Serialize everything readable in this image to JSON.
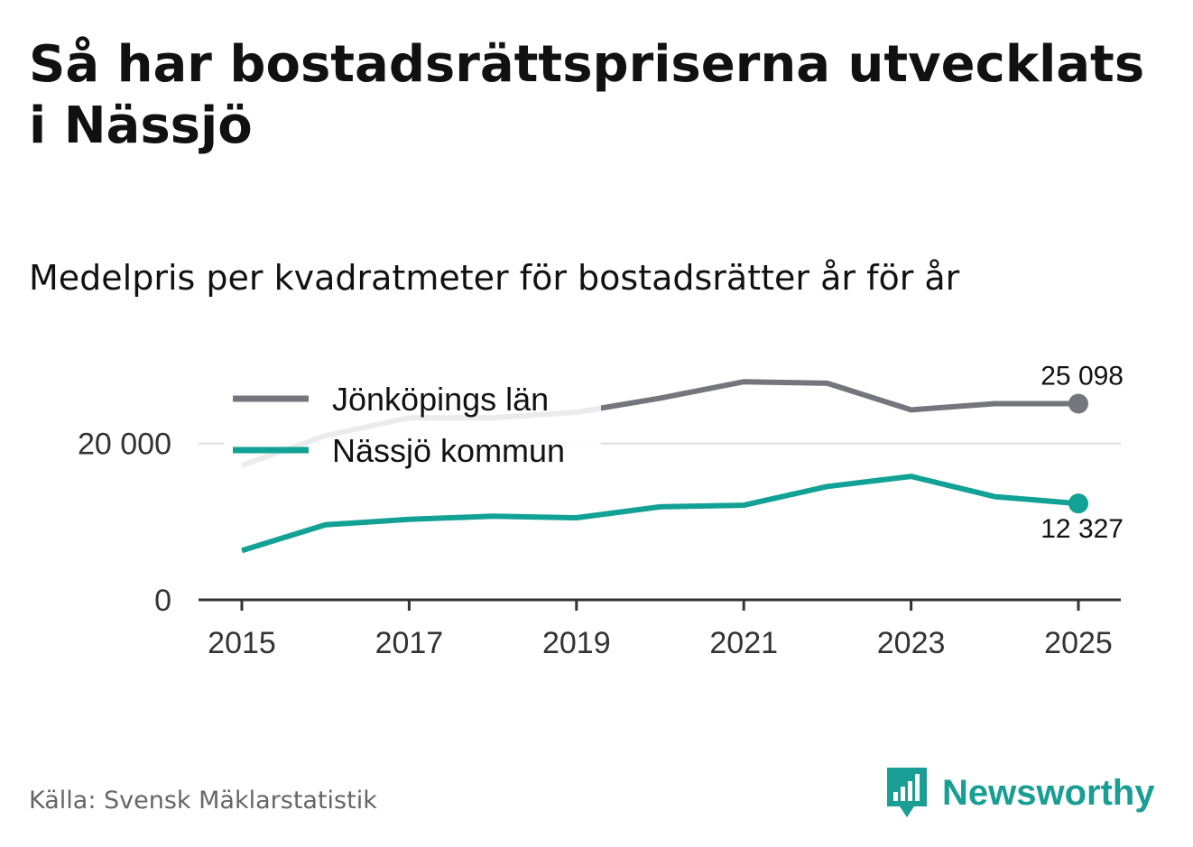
{
  "title": "Så har bostadsrättspriserna utvecklats i Nässjö",
  "subtitle": "Medelpris per kvadratmeter för bostadsrätter år för år",
  "source": "Källa: Svensk Mäklarstatistik",
  "brand": "Newsworthy",
  "colors": {
    "county": "#75757d",
    "municipality": "#12a195",
    "grid": "#dddddd",
    "axis": "#333333",
    "brand": "#199e93"
  },
  "chart_data": {
    "type": "line",
    "title": "Så har bostadsrättspriserna utvecklats i Nässjö",
    "subtitle": "Medelpris per kvadratmeter för bostadsrätter år för år",
    "xlabel": "",
    "ylabel": "",
    "xlim": [
      2015,
      2025
    ],
    "ylim": [
      0,
      30000
    ],
    "yticks": [
      {
        "value": 0,
        "label": "0"
      },
      {
        "value": 20000,
        "label": "20 000"
      }
    ],
    "xticks": [
      2015,
      2017,
      2019,
      2021,
      2023,
      2025
    ],
    "xtick_labels": [
      "2015",
      "2017",
      "2019",
      "2021",
      "2023",
      "2025"
    ],
    "x": [
      2015,
      2016,
      2017,
      2018,
      2019,
      2020,
      2021,
      2022,
      2023,
      2024,
      2025
    ],
    "legend_position": "top-left",
    "series": [
      {
        "name": "Jönköpings län",
        "color": "#75757d",
        "values": [
          17200,
          21000,
          23300,
          23300,
          24000,
          25800,
          27900,
          27700,
          24300,
          25100,
          25098
        ],
        "end_label": "25 098"
      },
      {
        "name": "Nässjö kommun",
        "color": "#12a195",
        "values": [
          6300,
          9600,
          10300,
          10700,
          10500,
          11900,
          12100,
          14500,
          15800,
          13200,
          12327
        ],
        "end_label": "12 327"
      }
    ]
  }
}
